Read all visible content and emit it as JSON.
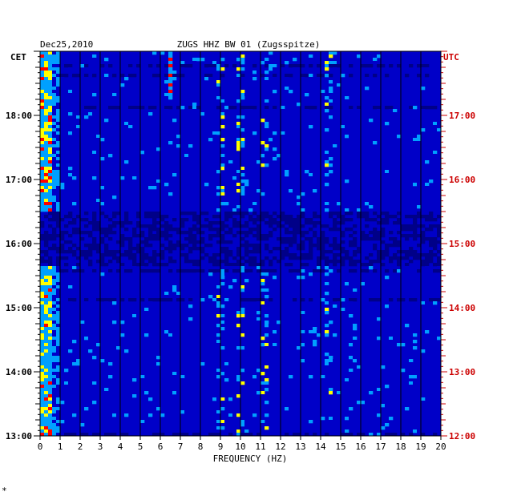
{
  "chart_data": {
    "type": "heatmap",
    "title": "ZUGS HHZ BW 01 (Zugsspitze)",
    "date": "Dec25,2010",
    "xlabel": "FREQUENCY (HZ)",
    "xlim": [
      0,
      20
    ],
    "x_ticks": [
      "0",
      "1",
      "2",
      "3",
      "4",
      "5",
      "6",
      "7",
      "8",
      "9",
      "10",
      "11",
      "12",
      "13",
      "14",
      "15",
      "16",
      "17",
      "18",
      "19",
      "20"
    ],
    "left_axis_label": "CET",
    "right_axis_label": "UTC",
    "left_ticks": [
      "13:00",
      "14:00",
      "15:00",
      "16:00",
      "17:00",
      "18:00"
    ],
    "right_ticks": [
      "12:00",
      "13:00",
      "14:00",
      "15:00",
      "16:00",
      "17:00"
    ],
    "time_range_cet_hours": [
      13,
      19
    ],
    "colors": {
      "background": "#000088",
      "low": "#0000c8",
      "mid": "#00a0ff",
      "high": "#ffff00",
      "peak": "#ff0000",
      "utc_label": "#cc0000"
    },
    "features": [
      {
        "desc": "strong low frequency energy",
        "freq_range_hz": [
          0,
          1
        ],
        "cet_range": [
          "13:00",
          "19:00"
        ]
      },
      {
        "desc": "narrow spike",
        "freq_hz": 6.6,
        "cet_range": [
          "18:15",
          "19:00"
        ]
      },
      {
        "desc": "bursts",
        "freq_hz": 9.0
      },
      {
        "desc": "bursts",
        "freq_hz": 10.0
      },
      {
        "desc": "bursts",
        "freq_hz": 11.2
      },
      {
        "desc": "bursts",
        "freq_hz": 14.4
      },
      {
        "desc": "quiet period",
        "cet_range": [
          "15:40",
          "16:30"
        ]
      }
    ]
  },
  "corner_mark": "*"
}
